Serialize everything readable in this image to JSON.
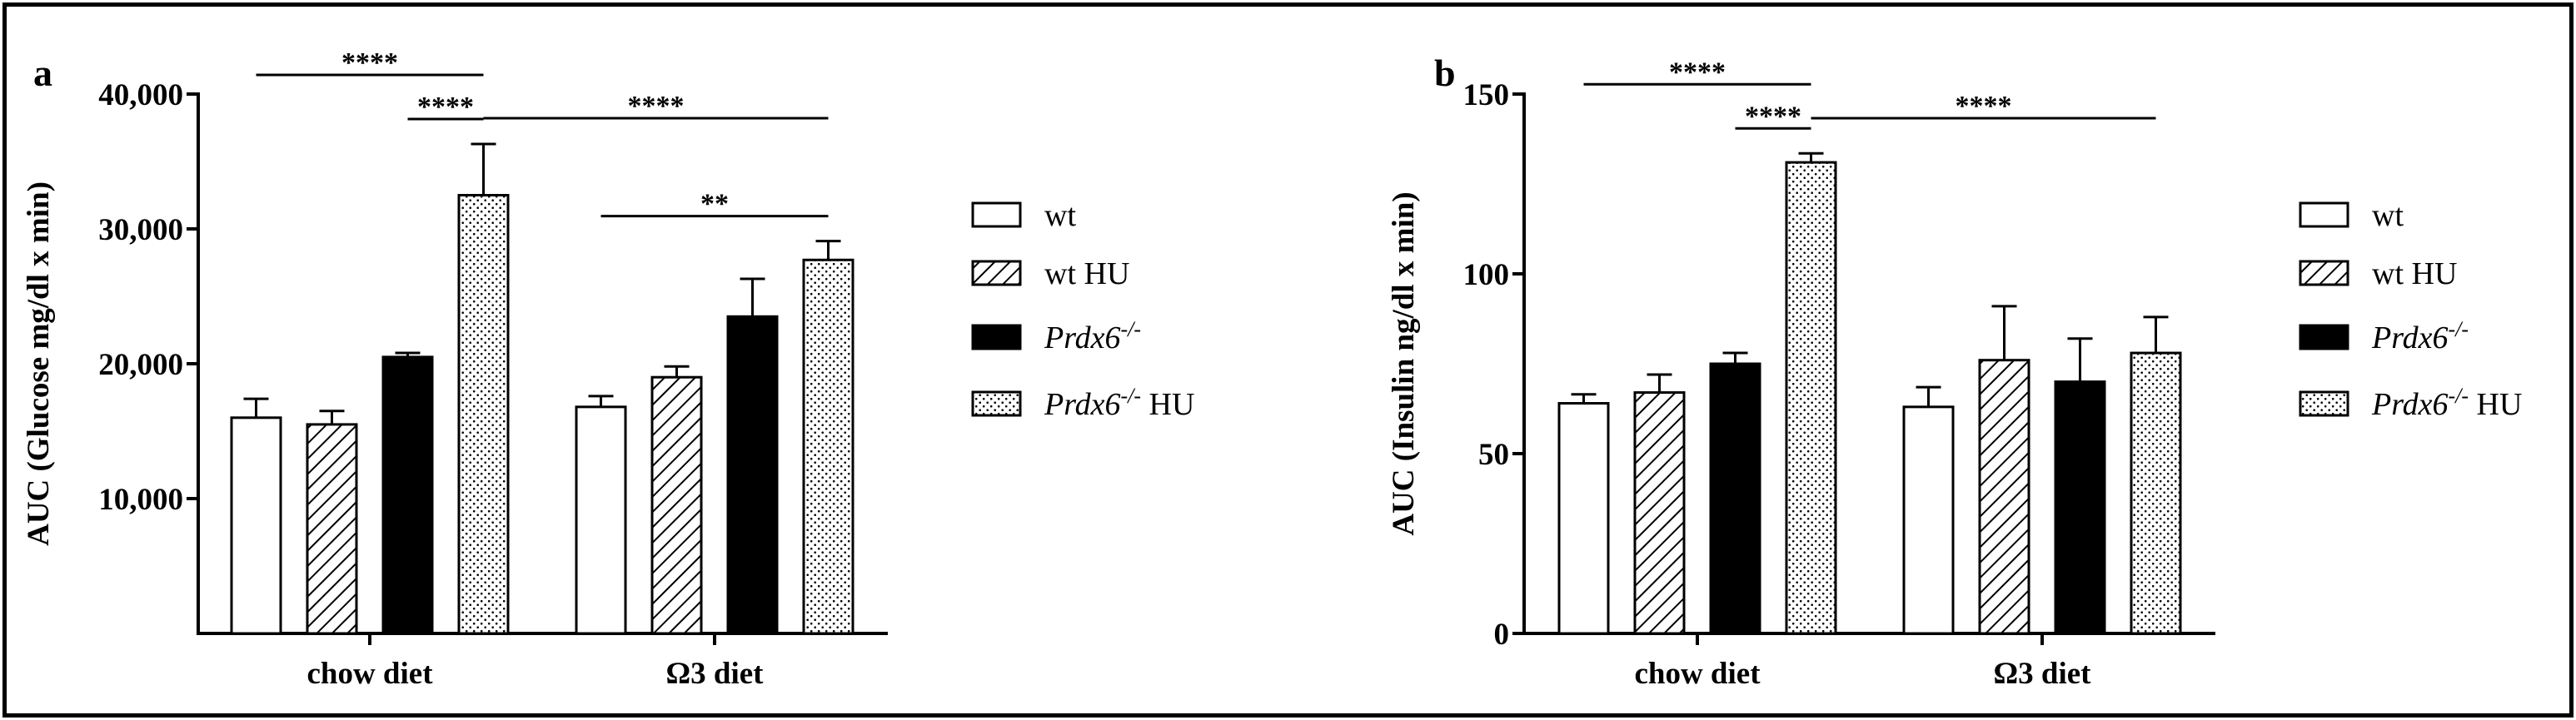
{
  "colors": {
    "ink": "#000000",
    "paper": "#ffffff"
  },
  "legend_entries": [
    {
      "key": "wt",
      "label_main": "wt",
      "label_sup": "",
      "label_suffix": "",
      "italic": false,
      "fill": "open"
    },
    {
      "key": "wt_hu",
      "label_main": "wt",
      "label_sup": "",
      "label_suffix": " HU",
      "italic": false,
      "fill": "hatch"
    },
    {
      "key": "prdx6",
      "label_main": "Prdx6",
      "label_sup": "-/-",
      "label_suffix": "",
      "italic": true,
      "fill": "solid"
    },
    {
      "key": "prdx6_hu",
      "label_main": "Prdx6",
      "label_sup": "-/-",
      "label_suffix": " HU",
      "italic": true,
      "fill": "dots"
    }
  ],
  "chart_data": [
    {
      "panel_label": "a",
      "type": "bar",
      "ylabel": "AUC (Glucose mg/dl x min)",
      "ylim": [
        0,
        40000
      ],
      "yticks": [
        10000,
        20000,
        30000,
        40000
      ],
      "ytick_labels": [
        "10,000",
        "20,000",
        "30,000",
        "40,000"
      ],
      "categories": [
        "chow diet",
        "Ω3 diet"
      ],
      "legend_position": "right",
      "series": [
        {
          "key": "wt",
          "values": [
            16000,
            16800
          ],
          "errors": [
            1400,
            800
          ]
        },
        {
          "key": "wt_hu",
          "values": [
            15500,
            19000
          ],
          "errors": [
            1000,
            800
          ]
        },
        {
          "key": "prdx6",
          "values": [
            20500,
            23500
          ],
          "errors": [
            300,
            2800
          ]
        },
        {
          "key": "prdx6_hu",
          "values": [
            32500,
            27700
          ],
          "errors": [
            3800,
            1400
          ]
        }
      ],
      "significance": [
        {
          "text": "****",
          "from": [
            0,
            2
          ],
          "to": [
            0,
            3
          ]
        },
        {
          "text": "****",
          "from": [
            0,
            0
          ],
          "to": [
            0,
            3
          ]
        },
        {
          "text": "****",
          "from": [
            0,
            3
          ],
          "to": [
            1,
            3
          ]
        },
        {
          "text": "**",
          "from": [
            1,
            0
          ],
          "to": [
            1,
            3
          ]
        }
      ]
    },
    {
      "panel_label": "b",
      "type": "bar",
      "ylabel": "AUC (Insulin ng/dl x min)",
      "ylim": [
        0,
        150
      ],
      "yticks": [
        0,
        50,
        100,
        150
      ],
      "ytick_labels": [
        "0",
        "50",
        "100",
        "150"
      ],
      "categories": [
        "chow diet",
        "Ω3 diet"
      ],
      "legend_position": "right",
      "series": [
        {
          "key": "wt",
          "values": [
            64,
            63
          ],
          "errors": [
            2.5,
            5.5
          ]
        },
        {
          "key": "wt_hu",
          "values": [
            67,
            76
          ],
          "errors": [
            5,
            15
          ]
        },
        {
          "key": "prdx6",
          "values": [
            75,
            70
          ],
          "errors": [
            3,
            12
          ]
        },
        {
          "key": "prdx6_hu",
          "values": [
            131,
            78
          ],
          "errors": [
            2.5,
            10
          ]
        }
      ],
      "significance": [
        {
          "text": "****",
          "from": [
            0,
            2
          ],
          "to": [
            0,
            3
          ]
        },
        {
          "text": "****",
          "from": [
            0,
            0
          ],
          "to": [
            0,
            3
          ]
        },
        {
          "text": "****",
          "from": [
            0,
            3
          ],
          "to": [
            1,
            3
          ]
        }
      ]
    }
  ]
}
